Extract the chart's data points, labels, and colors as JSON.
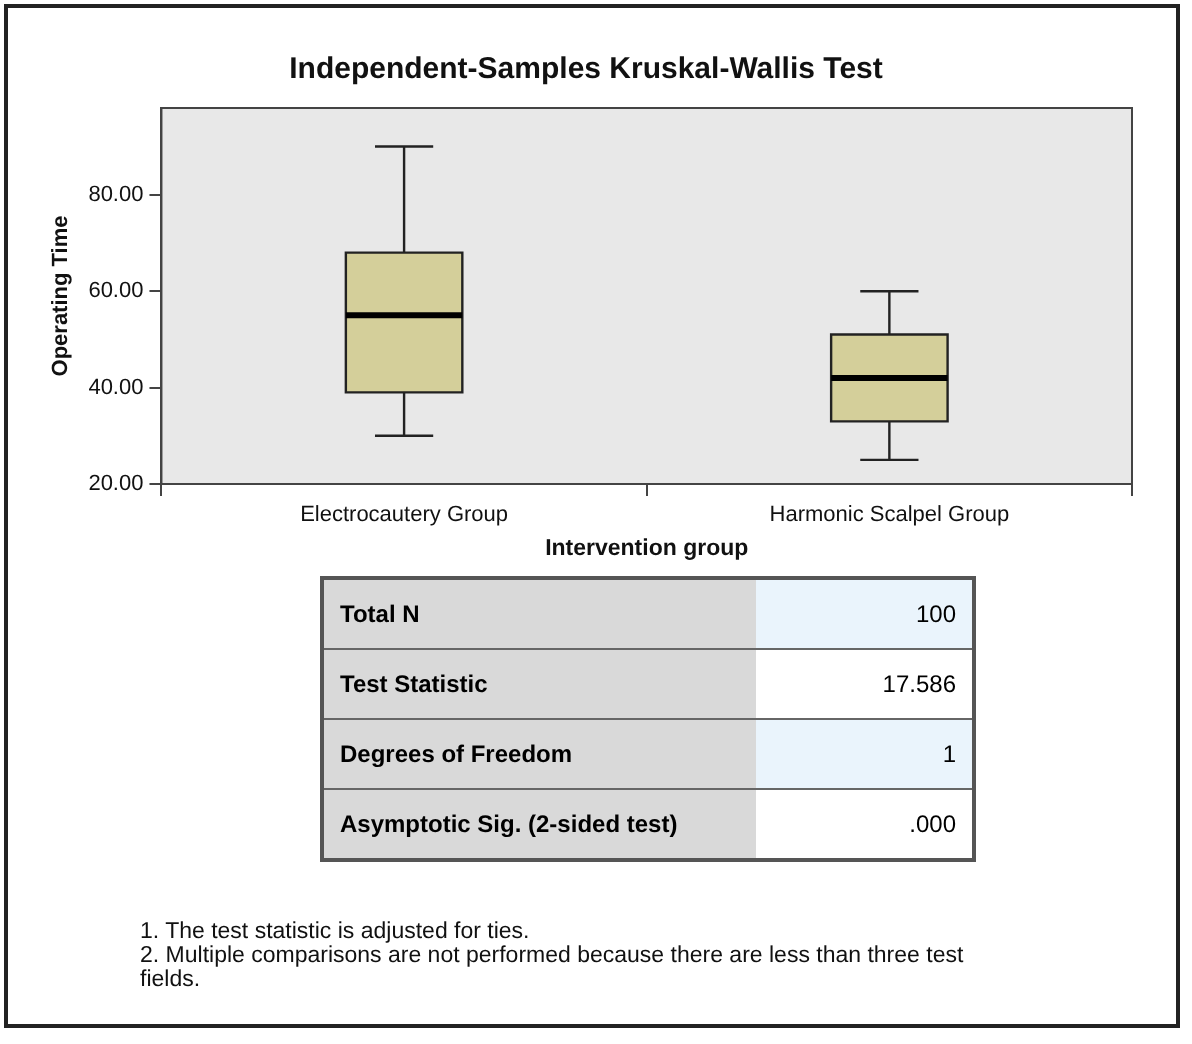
{
  "chart_data": [
    {
      "type": "box",
      "title": "Independent-Samples Kruskal-Wallis Test",
      "xlabel": "Intervention group",
      "ylabel": "Operating Time",
      "categories": [
        "Electrocautery Group",
        "Harmonic Scalpel Group"
      ],
      "series": [
        {
          "color": "#d4cf9a",
          "boxes": [
            {
              "low": 30,
              "q1": 39,
              "median": 55,
              "q3": 68,
              "high": 90
            },
            {
              "low": 25,
              "q1": 33,
              "median": 42,
              "q3": 51,
              "high": 60
            }
          ]
        }
      ],
      "ylim": [
        20,
        98
      ],
      "yticks": [
        {
          "value": 20,
          "label": "20.00"
        },
        {
          "value": 40,
          "label": "40.00"
        },
        {
          "value": 60,
          "label": "60.00"
        },
        {
          "value": 80,
          "label": "80.00"
        }
      ],
      "grid": false,
      "legend": false
    },
    {
      "type": "other",
      "categories": [
        "Total N",
        "Test Statistic",
        "Degrees of Freedom",
        "Asymptotic Sig. (2-sided test)"
      ],
      "value_labels": [
        "100",
        "17.586",
        "1",
        ".000"
      ],
      "annotations": [
        "1.  The test statistic is adjusted for ties.",
        "2.  Multiple comparisons are not performed because there are less than three test fields."
      ]
    }
  ]
}
